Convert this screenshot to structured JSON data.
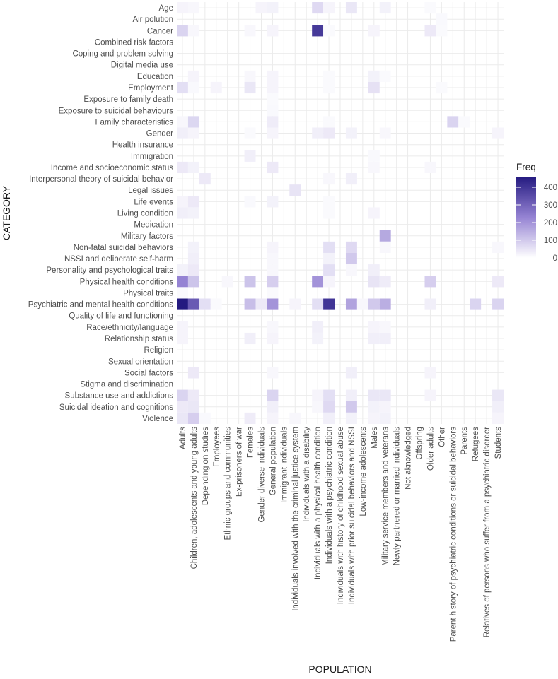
{
  "chart_data": {
    "type": "heatmap",
    "title": "",
    "xlabel": "POPULATION",
    "ylabel": "CATEGORY",
    "legend_title": "Freq",
    "legend_ticks": [
      0,
      100,
      200,
      300,
      400
    ],
    "value_range": [
      0,
      460
    ],
    "color_low": "#ffffff",
    "color_high": "#241a80",
    "x": [
      "Adults",
      "Children, adolescents and young adults",
      "Depending on studies",
      "Employees",
      "Ethnic groups and communities",
      "Ex-prisoners of war",
      "Females",
      "Gender diverse individuals",
      "General population",
      "Immigrant individuals",
      "Individuals involved with the criminal justice system",
      "Individuals with a disability",
      "Individuals with a physical health condition",
      "Individuals with a psychiatric condition",
      "Individuals with history of childhood sexual abuse",
      "Individuals with prior suicidal behaviors and NSSI",
      "Low-income adolescents",
      "Males",
      "Military service members and veterans",
      "Newly partnered or married individuals",
      "Not aknowledged",
      "Offspring",
      "Older adults",
      "Other",
      "Parent history of psychiatric conditions or suicidal behaviors",
      "Parents",
      "Refugees",
      "Relatives of persons who suffer from a psychiatric disorder",
      "Students"
    ],
    "y": [
      "Age",
      "Air polution",
      "Cancer",
      "Combined risk factors",
      "Coping and problem solving",
      "Digital media use",
      "Education",
      "Employment",
      "Exposure to family death",
      "Exposure to suicidal behaviours",
      "Family characteristics",
      "Gender",
      "Health insurance",
      "Immigration",
      "Income and socioeconomic status",
      "Interpersonal theory of suicidal behavior",
      "Legal issues",
      "Life events",
      "Living condition",
      "Medication",
      "Military factors",
      "Non-fatal suicidal behaviors",
      "NSSI and deliberate self-harm",
      "Personality and psychological traits",
      "Physical health conditions",
      "Physical traits",
      "Psychiatric and mental health conditions",
      "Quality of life and functioning",
      "Race/ethnicity/language",
      "Relationship status",
      "Religion",
      "Sexual orientation",
      "Social factors",
      "Stigma and discrimination",
      "Substance use and addictions",
      "Suicidal ideation and cognitions",
      "Violence"
    ],
    "cells": [
      [
        "Age",
        "Adults",
        20
      ],
      [
        "Age",
        "Children, adolescents and young adults",
        15
      ],
      [
        "Age",
        "Gender diverse individuals",
        20
      ],
      [
        "Age",
        "General population",
        25
      ],
      [
        "Age",
        "Individuals with a physical health condition",
        70
      ],
      [
        "Age",
        "Individuals with a psychiatric condition",
        20
      ],
      [
        "Age",
        "Individuals with prior suicidal behaviors and NSSI",
        45
      ],
      [
        "Age",
        "Military service members and veterans",
        25
      ],
      [
        "Age",
        "Older adults",
        10
      ],
      [
        "Air polution",
        "Other",
        12
      ],
      [
        "Cancer",
        "Adults",
        80
      ],
      [
        "Cancer",
        "Children, adolescents and young adults",
        15
      ],
      [
        "Cancer",
        "Females",
        15
      ],
      [
        "Cancer",
        "General population",
        20
      ],
      [
        "Cancer",
        "Individuals with a physical health condition",
        390
      ],
      [
        "Cancer",
        "Individuals with a psychiatric condition",
        10
      ],
      [
        "Cancer",
        "Males",
        20
      ],
      [
        "Cancer",
        "Older adults",
        40
      ],
      [
        "Cancer",
        "Other",
        10
      ],
      [
        "Education",
        "Children, adolescents and young adults",
        20
      ],
      [
        "Education",
        "Females",
        15
      ],
      [
        "Education",
        "General population",
        20
      ],
      [
        "Education",
        "Individuals with a psychiatric condition",
        10
      ],
      [
        "Education",
        "Males",
        25
      ],
      [
        "Education",
        "Military service members and veterans",
        10
      ],
      [
        "Employment",
        "Adults",
        60
      ],
      [
        "Employment",
        "Children, adolescents and young adults",
        12
      ],
      [
        "Employment",
        "Employees",
        20
      ],
      [
        "Employment",
        "Females",
        45
      ],
      [
        "Employment",
        "General population",
        20
      ],
      [
        "Employment",
        "Individuals with a psychiatric condition",
        10
      ],
      [
        "Employment",
        "Males",
        55
      ],
      [
        "Employment",
        "Other",
        10
      ],
      [
        "Exposure to family death",
        "General population",
        10
      ],
      [
        "Exposure to suicidal behaviours",
        "General population",
        12
      ],
      [
        "Family characteristics",
        "Adults",
        15
      ],
      [
        "Family characteristics",
        "Children, adolescents and young adults",
        75
      ],
      [
        "Family characteristics",
        "General population",
        35
      ],
      [
        "Family characteristics",
        "Individuals with a psychiatric condition",
        10
      ],
      [
        "Family characteristics",
        "Parent history of psychiatric conditions or suicidal behaviors",
        80
      ],
      [
        "Family characteristics",
        "Parents",
        10
      ],
      [
        "Gender",
        "Adults",
        30
      ],
      [
        "Gender",
        "Children, adolescents and young adults",
        20
      ],
      [
        "Gender",
        "Females",
        10
      ],
      [
        "Gender",
        "General population",
        20
      ],
      [
        "Gender",
        "Individuals with a physical health condition",
        30
      ],
      [
        "Gender",
        "Individuals with a psychiatric condition",
        40
      ],
      [
        "Gender",
        "Individuals with prior suicidal behaviors and NSSI",
        25
      ],
      [
        "Gender",
        "Military service members and veterans",
        15
      ],
      [
        "Gender",
        "Students",
        20
      ],
      [
        "Immigration",
        "Females",
        30
      ],
      [
        "Immigration",
        "Males",
        12
      ],
      [
        "Income and socioeconomic status",
        "Adults",
        40
      ],
      [
        "Income and socioeconomic status",
        "Children, adolescents and young adults",
        25
      ],
      [
        "Income and socioeconomic status",
        "General population",
        40
      ],
      [
        "Income and socioeconomic status",
        "Males",
        15
      ],
      [
        "Income and socioeconomic status",
        "Older adults",
        15
      ],
      [
        "Interpersonal theory of suicidal behavior",
        "Depending on studies",
        40
      ],
      [
        "Interpersonal theory of suicidal behavior",
        "Individuals with a psychiatric condition",
        15
      ],
      [
        "Interpersonal theory of suicidal behavior",
        "Individuals with prior suicidal behaviors and NSSI",
        30
      ],
      [
        "Legal issues",
        "Individuals involved with the criminal justice system",
        50
      ],
      [
        "Life events",
        "Adults",
        20
      ],
      [
        "Life events",
        "Children, adolescents and young adults",
        40
      ],
      [
        "Life events",
        "Females",
        12
      ],
      [
        "Life events",
        "General population",
        25
      ],
      [
        "Life events",
        "Individuals with a psychiatric condition",
        10
      ],
      [
        "Living condition",
        "Adults",
        30
      ],
      [
        "Living condition",
        "Children, adolescents and young adults",
        25
      ],
      [
        "Living condition",
        "Individuals with a psychiatric condition",
        10
      ],
      [
        "Living condition",
        "Males",
        20
      ],
      [
        "Military factors",
        "Military service members and veterans",
        160
      ],
      [
        "Non-fatal suicidal behaviors",
        "Children, adolescents and young adults",
        25
      ],
      [
        "Non-fatal suicidal behaviors",
        "General population",
        20
      ],
      [
        "Non-fatal suicidal behaviors",
        "Individuals with a psychiatric condition",
        60
      ],
      [
        "Non-fatal suicidal behaviors",
        "Individuals with prior suicidal behaviors and NSSI",
        70
      ],
      [
        "Non-fatal suicidal behaviors",
        "Military service members and veterans",
        15
      ],
      [
        "Non-fatal suicidal behaviors",
        "Students",
        15
      ],
      [
        "NSSI and deliberate self-harm",
        "Children, adolescents and young adults",
        30
      ],
      [
        "NSSI and deliberate self-harm",
        "General population",
        15
      ],
      [
        "NSSI and deliberate self-harm",
        "Individuals with a psychiatric condition",
        25
      ],
      [
        "NSSI and deliberate self-harm",
        "Individuals with prior suicidal behaviors and NSSI",
        100
      ],
      [
        "Personality and psychological traits",
        "Adults",
        25
      ],
      [
        "Personality and psychological traits",
        "Children, adolescents and young adults",
        40
      ],
      [
        "Personality and psychological traits",
        "General population",
        15
      ],
      [
        "Personality and psychological traits",
        "Individuals with a psychiatric condition",
        60
      ],
      [
        "Personality and psychological traits",
        "Males",
        30
      ],
      [
        "Personality and psychological traits",
        "Individuals with prior suicidal behaviors and NSSI",
        15
      ],
      [
        "Physical health conditions",
        "Adults",
        230
      ],
      [
        "Physical health conditions",
        "Children, adolescents and young adults",
        110
      ],
      [
        "Physical health conditions",
        "Ethnic groups and communities",
        15
      ],
      [
        "Physical health conditions",
        "Females",
        110
      ],
      [
        "Physical health conditions",
        "General population",
        90
      ],
      [
        "Physical health conditions",
        "Individuals with a physical health condition",
        200
      ],
      [
        "Physical health conditions",
        "Individuals with a psychiatric condition",
        20
      ],
      [
        "Physical health conditions",
        "Males",
        50
      ],
      [
        "Physical health conditions",
        "Military service members and veterans",
        35
      ],
      [
        "Physical health conditions",
        "Older adults",
        90
      ],
      [
        "Physical health conditions",
        "Students",
        40
      ],
      [
        "Physical traits",
        "Adults",
        10
      ],
      [
        "Physical traits",
        "General population",
        10
      ],
      [
        "Psychiatric and mental health conditions",
        "Adults",
        460
      ],
      [
        "Psychiatric and mental health conditions",
        "Children, adolescents and young adults",
        320
      ],
      [
        "Psychiatric and mental health conditions",
        "Depending on studies",
        60
      ],
      [
        "Psychiatric and mental health conditions",
        "Employees",
        10
      ],
      [
        "Psychiatric and mental health conditions",
        "Females",
        120
      ],
      [
        "Psychiatric and mental health conditions",
        "Gender diverse individuals",
        40
      ],
      [
        "Psychiatric and mental health conditions",
        "General population",
        200
      ],
      [
        "Psychiatric and mental health conditions",
        "Individuals involved with the criminal justice system",
        20
      ],
      [
        "Psychiatric and mental health conditions",
        "Individuals with a physical health condition",
        60
      ],
      [
        "Psychiatric and mental health conditions",
        "Individuals with a psychiatric condition",
        400
      ],
      [
        "Psychiatric and mental health conditions",
        "Individuals with prior suicidal behaviors and NSSI",
        170
      ],
      [
        "Psychiatric and mental health conditions",
        "Low-income adolescents",
        15
      ],
      [
        "Psychiatric and mental health conditions",
        "Males",
        100
      ],
      [
        "Psychiatric and mental health conditions",
        "Military service members and veterans",
        150
      ],
      [
        "Psychiatric and mental health conditions",
        "Older adults",
        30
      ],
      [
        "Psychiatric and mental health conditions",
        "Refugees",
        80
      ],
      [
        "Psychiatric and mental health conditions",
        "Students",
        80
      ],
      [
        "Race/ethnicity/language",
        "Adults",
        20
      ],
      [
        "Race/ethnicity/language",
        "General population",
        15
      ],
      [
        "Race/ethnicity/language",
        "Individuals with a physical health condition",
        30
      ],
      [
        "Race/ethnicity/language",
        "Males",
        20
      ],
      [
        "Race/ethnicity/language",
        "Military service members and veterans",
        15
      ],
      [
        "Relationship status",
        "Adults",
        20
      ],
      [
        "Relationship status",
        "Females",
        30
      ],
      [
        "Relationship status",
        "General population",
        20
      ],
      [
        "Relationship status",
        "Individuals with a physical health condition",
        25
      ],
      [
        "Relationship status",
        "Males",
        30
      ],
      [
        "Relationship status",
        "Military service members and veterans",
        30
      ],
      [
        "Social factors",
        "Children, adolescents and young adults",
        40
      ],
      [
        "Social factors",
        "General population",
        15
      ],
      [
        "Social factors",
        "Individuals with prior suicidal behaviors and NSSI",
        30
      ],
      [
        "Social factors",
        "Older adults",
        20
      ],
      [
        "Substance use and addictions",
        "Adults",
        80
      ],
      [
        "Substance use and addictions",
        "Children, adolescents and young adults",
        40
      ],
      [
        "Substance use and addictions",
        "General population",
        80
      ],
      [
        "Substance use and addictions",
        "Individuals with a physical health condition",
        20
      ],
      [
        "Substance use and addictions",
        "Individuals with a psychiatric condition",
        60
      ],
      [
        "Substance use and addictions",
        "Individuals with prior suicidal behaviors and NSSI",
        30
      ],
      [
        "Substance use and addictions",
        "Males",
        45
      ],
      [
        "Substance use and addictions",
        "Military service members and veterans",
        45
      ],
      [
        "Substance use and addictions",
        "Older adults",
        20
      ],
      [
        "Substance use and addictions",
        "Students",
        45
      ],
      [
        "Suicidal ideation and cognitions",
        "Adults",
        40
      ],
      [
        "Suicidal ideation and cognitions",
        "Children, adolescents and young adults",
        45
      ],
      [
        "Suicidal ideation and cognitions",
        "General population",
        30
      ],
      [
        "Suicidal ideation and cognitions",
        "Individuals with a physical health condition",
        15
      ],
      [
        "Suicidal ideation and cognitions",
        "Individuals with a psychiatric condition",
        70
      ],
      [
        "Suicidal ideation and cognitions",
        "Individuals with prior suicidal behaviors and NSSI",
        100
      ],
      [
        "Suicidal ideation and cognitions",
        "Males",
        25
      ],
      [
        "Suicidal ideation and cognitions",
        "Military service members and veterans",
        20
      ],
      [
        "Suicidal ideation and cognitions",
        "Students",
        30
      ],
      [
        "Violence",
        "Adults",
        45
      ],
      [
        "Violence",
        "Children, adolescents and young adults",
        90
      ],
      [
        "Violence",
        "Depending on studies",
        12
      ],
      [
        "Violence",
        "Females",
        35
      ],
      [
        "Violence",
        "General population",
        20
      ],
      [
        "Violence",
        "Individuals involved with the criminal justice system",
        15
      ],
      [
        "Violence",
        "Individuals with a psychiatric condition",
        30
      ],
      [
        "Violence",
        "Individuals with prior suicidal behaviors and NSSI",
        25
      ],
      [
        "Violence",
        "Males",
        20
      ],
      [
        "Violence",
        "Military service members and veterans",
        25
      ],
      [
        "Violence",
        "Students",
        20
      ]
    ]
  }
}
